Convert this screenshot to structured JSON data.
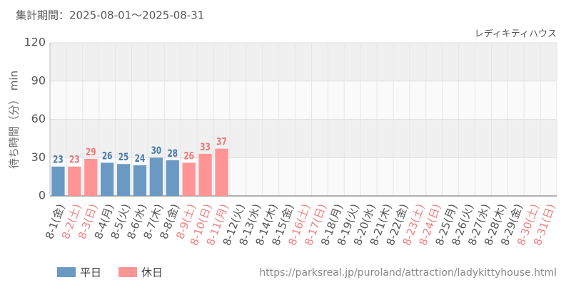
{
  "chart_data": {
    "type": "bar",
    "title": "集計期間：2025-08-01〜2025-08-31",
    "subtitle": "レディキティハウス",
    "y_label": "待ち時間（分） min",
    "source": "https://parksreal.jp/puroland/attraction/ladykittyhouse.html",
    "categories": [
      "8-1(金)",
      "8-2(土)",
      "8-3(日)",
      "8-4(月)",
      "8-5(火)",
      "8-6(水)",
      "8-7(木)",
      "8-8(金)",
      "8-9(土)",
      "8-10(日)",
      "8-11(月)",
      "8-12(火)",
      "8-13(水)",
      "8-14(木)",
      "8-15(金)",
      "8-16(土)",
      "8-17(日)",
      "8-18(月)",
      "8-19(火)",
      "8-20(水)",
      "8-21(木)",
      "8-22(金)",
      "8-23(土)",
      "8-24(日)",
      "8-25(月)",
      "8-26(火)",
      "8-27(水)",
      "8-28(木)",
      "8-29(金)",
      "8-30(土)",
      "8-31(日)"
    ],
    "category_colors": [
      "#555555",
      "#f08080",
      "#f08080",
      "#555555",
      "#555555",
      "#555555",
      "#555555",
      "#555555",
      "#f08080",
      "#f08080",
      "#f08080",
      "#555555",
      "#555555",
      "#555555",
      "#555555",
      "#f08080",
      "#f08080",
      "#555555",
      "#555555",
      "#555555",
      "#555555",
      "#555555",
      "#f08080",
      "#f08080",
      "#555555",
      "#555555",
      "#555555",
      "#555555",
      "#555555",
      "#f08080",
      "#f08080"
    ],
    "series": [
      {
        "name": "平日",
        "color": "#6a9ac4",
        "label_color": "#4a7aa8",
        "values": [
          23,
          null,
          null,
          26,
          25,
          24,
          30,
          28,
          null,
          null,
          null,
          null,
          null,
          null,
          null,
          null,
          null,
          null,
          null,
          null,
          null,
          null,
          null,
          null,
          null,
          null,
          null,
          null,
          null,
          null,
          null
        ]
      },
      {
        "name": "休日",
        "color": "#ff9494",
        "label_color": "#f07878",
        "values": [
          null,
          23,
          29,
          null,
          null,
          null,
          null,
          null,
          26,
          33,
          37,
          null,
          null,
          null,
          null,
          null,
          null,
          null,
          null,
          null,
          null,
          null,
          null,
          null,
          null,
          null,
          null,
          null,
          null,
          null,
          null
        ]
      }
    ],
    "ylim": [
      0,
      120
    ],
    "yticks": [
      0,
      30,
      60,
      90,
      120
    ],
    "grid": true
  }
}
